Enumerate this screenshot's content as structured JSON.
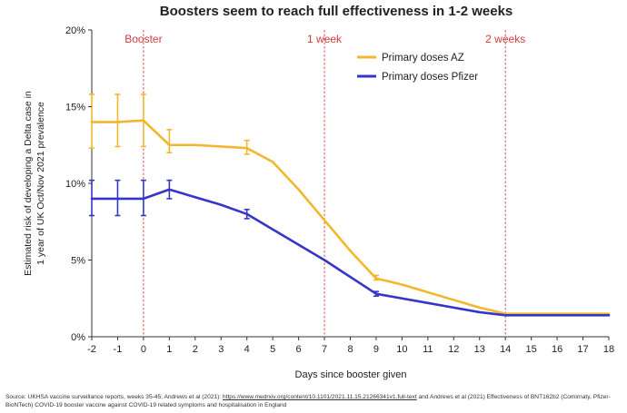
{
  "chart_data": {
    "type": "line",
    "title": "Boosters seem to reach full effectiveness in 1-2 weeks",
    "xlabel": "Days since booster given",
    "ylabel_line1": "Estimated risk of developing a Delta case in",
    "ylabel_line2": "1 year of UK Oct/Nov 2021 prevalence",
    "xlim": [
      -2,
      18
    ],
    "ylim": [
      0,
      20
    ],
    "x_ticks": [
      -2,
      -1,
      0,
      1,
      2,
      3,
      4,
      5,
      6,
      7,
      8,
      9,
      10,
      11,
      12,
      13,
      14,
      15,
      16,
      17,
      18
    ],
    "x_tick_labels": [
      "-2",
      "-1",
      "0",
      "1",
      "2",
      "3",
      "4",
      "5",
      "6",
      "7",
      "8",
      "9",
      "10",
      "11",
      "12",
      "13",
      "14",
      "15",
      "16",
      "17",
      "18"
    ],
    "y_ticks": [
      0,
      5,
      10,
      15,
      20
    ],
    "y_tick_labels": [
      "0%",
      "5%",
      "10%",
      "15%",
      "20%"
    ],
    "grid": false,
    "legend_position": "top-right",
    "reference_lines": [
      {
        "x": 0,
        "label": "Booster"
      },
      {
        "x": 7,
        "label": "1 week"
      },
      {
        "x": 14,
        "label": "2 weeks"
      }
    ],
    "series": [
      {
        "name": "Primary doses AZ",
        "color": "#F2B72F",
        "x": [
          -2,
          -1,
          0,
          1,
          2,
          3,
          4,
          5,
          6,
          7,
          8,
          9,
          10,
          11,
          12,
          13,
          14,
          15,
          16,
          17,
          18
        ],
        "values": [
          14.0,
          14.0,
          14.1,
          12.5,
          12.5,
          12.4,
          12.3,
          11.4,
          9.6,
          7.6,
          5.6,
          3.8,
          3.4,
          2.9,
          2.4,
          1.9,
          1.5,
          1.5,
          1.5,
          1.5,
          1.5
        ],
        "error_bars": [
          {
            "x": -2,
            "low": 12.3,
            "high": 15.8
          },
          {
            "x": -1,
            "low": 12.4,
            "high": 15.8
          },
          {
            "x": 0,
            "low": 12.4,
            "high": 15.8
          },
          {
            "x": 1,
            "low": 12.0,
            "high": 13.5
          },
          {
            "x": 4,
            "low": 11.9,
            "high": 12.8
          },
          {
            "x": 9,
            "low": 3.7,
            "high": 4.0
          }
        ]
      },
      {
        "name": "Primary doses Pfizer",
        "color": "#3535C8",
        "x": [
          -2,
          -1,
          0,
          1,
          2,
          3,
          4,
          5,
          6,
          7,
          8,
          9,
          10,
          11,
          12,
          13,
          14,
          15,
          16,
          17,
          18
        ],
        "values": [
          9.0,
          9.0,
          9.0,
          9.6,
          9.1,
          8.6,
          8.0,
          7.0,
          6.0,
          5.0,
          3.9,
          2.8,
          2.5,
          2.2,
          1.9,
          1.6,
          1.4,
          1.4,
          1.4,
          1.4,
          1.4
        ],
        "error_bars": [
          {
            "x": -2,
            "low": 7.9,
            "high": 10.2
          },
          {
            "x": -1,
            "low": 7.9,
            "high": 10.2
          },
          {
            "x": 0,
            "low": 7.9,
            "high": 10.2
          },
          {
            "x": 1,
            "low": 9.0,
            "high": 10.2
          },
          {
            "x": 4,
            "low": 7.7,
            "high": 8.3
          },
          {
            "x": 9,
            "low": 2.65,
            "high": 2.95
          }
        ]
      }
    ],
    "source_part1": "Source: UKHSA vaccine surveillance reports, weeks 35-45; Andrews et al (2021): ",
    "source_url": "https://www.medrxiv.org/content/10.1101/2021.11.15.21266341v1.full-text",
    "source_part2": " and Andrews et al (2021) Effectiveness of BNT162b2 (Comirnaty, Pfizer-BioNTech) COVID-19 booster vaccine against COVID-19 related symptoms and hospitalisation in England"
  }
}
